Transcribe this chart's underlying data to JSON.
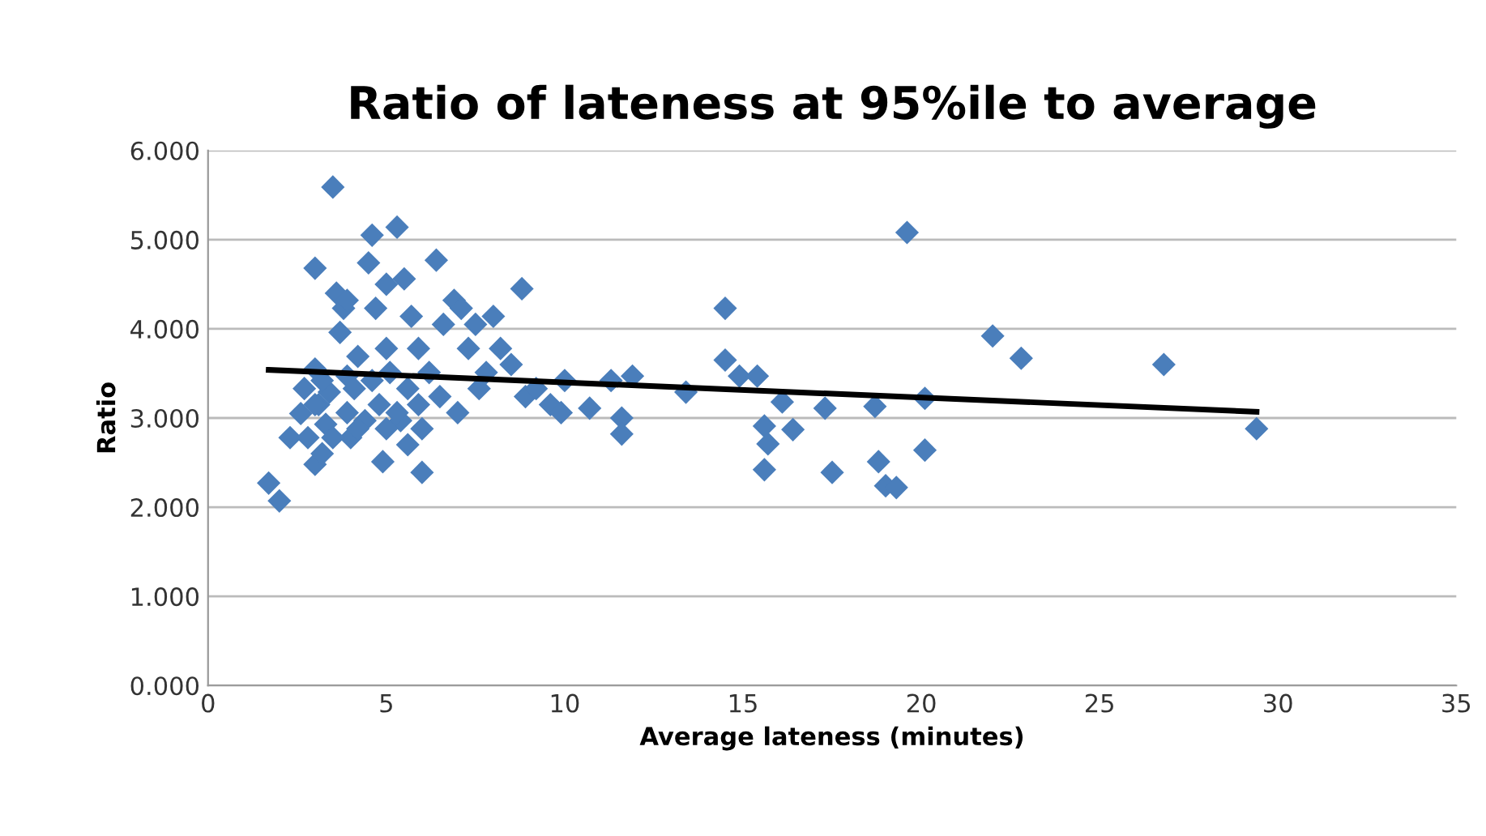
{
  "chart_data": {
    "type": "scatter",
    "title": "Ratio of lateness at 95%ile to average",
    "xlabel": "Average lateness (minutes)",
    "ylabel": "Ratio",
    "xlim": [
      0,
      35
    ],
    "xticks": [
      0,
      5,
      10,
      15,
      20,
      25,
      30,
      35
    ],
    "ylim": [
      0,
      6
    ],
    "yticks": [
      {
        "value": 0,
        "label": "0.000"
      },
      {
        "value": 1,
        "label": "1.000"
      },
      {
        "value": 2,
        "label": "2.000"
      },
      {
        "value": 3,
        "label": "3.000"
      },
      {
        "value": 4,
        "label": "4.000"
      },
      {
        "value": 5,
        "label": "5.000"
      },
      {
        "value": 6,
        "label": "6.000"
      }
    ],
    "grid": "y",
    "legend": false,
    "marker": "diamond",
    "series": [
      {
        "color": "#4a7ebb",
        "x": [
          1.7,
          2.0,
          2.3,
          2.6,
          2.7,
          2.8,
          3.0,
          3.0,
          3.0,
          3.1,
          3.2,
          3.3,
          3.4,
          3.5,
          3.6,
          3.7,
          3.8,
          3.9,
          3.9,
          4.0,
          4.1,
          4.2,
          4.4,
          4.5,
          4.6,
          4.7,
          4.8,
          4.9,
          5.0,
          5.0,
          5.1,
          5.3,
          5.4,
          5.5,
          5.6,
          5.7,
          5.9,
          6.0,
          6.0,
          6.2,
          6.4,
          6.5,
          6.6,
          6.9,
          7.0,
          7.1,
          7.3,
          7.5,
          7.6,
          7.8,
          8.0,
          8.2,
          8.5,
          8.8,
          8.9,
          9.2,
          9.6,
          9.9,
          10.0,
          10.7,
          3.0,
          3.5,
          3.9,
          4.6,
          5.3,
          5.9,
          4.2,
          3.2,
          5.0,
          5.6,
          11.3,
          11.9,
          11.6,
          11.6,
          13.4,
          14.5,
          14.5,
          14.9,
          15.4,
          16.1,
          15.6,
          15.7,
          15.6,
          16.4,
          17.3,
          17.5,
          18.7,
          18.8,
          19.0,
          19.3,
          19.6,
          20.1,
          20.1,
          22.0,
          22.8,
          26.8,
          29.4
        ],
        "values": [
          2.27,
          2.07,
          2.78,
          3.05,
          3.33,
          2.78,
          2.48,
          4.68,
          3.55,
          3.15,
          2.6,
          2.93,
          3.29,
          5.59,
          4.4,
          3.96,
          4.23,
          4.32,
          3.47,
          2.78,
          3.33,
          3.69,
          2.97,
          4.74,
          5.05,
          4.23,
          3.15,
          2.51,
          3.78,
          4.5,
          3.51,
          5.14,
          2.97,
          4.56,
          3.33,
          4.14,
          3.78,
          2.39,
          2.88,
          3.51,
          4.77,
          3.24,
          4.05,
          4.32,
          3.06,
          4.23,
          3.78,
          4.05,
          3.33,
          3.51,
          4.14,
          3.78,
          3.6,
          4.45,
          3.24,
          3.33,
          3.15,
          3.06,
          3.42,
          3.11,
          3.15,
          2.78,
          3.06,
          3.42,
          3.06,
          3.15,
          2.88,
          3.42,
          2.88,
          2.7,
          3.42,
          3.47,
          3.0,
          2.82,
          3.29,
          4.23,
          3.65,
          3.47,
          3.47,
          3.18,
          2.91,
          2.71,
          2.42,
          2.87,
          3.11,
          2.39,
          3.13,
          2.51,
          2.24,
          2.22,
          5.08,
          3.22,
          2.64,
          3.92,
          3.67,
          3.6,
          2.88
        ]
      },
      {
        "type": "line",
        "marker": "none",
        "color": "#000000",
        "x": [
          1.7,
          29.4
        ],
        "values": [
          3.54,
          3.07
        ]
      }
    ]
  }
}
